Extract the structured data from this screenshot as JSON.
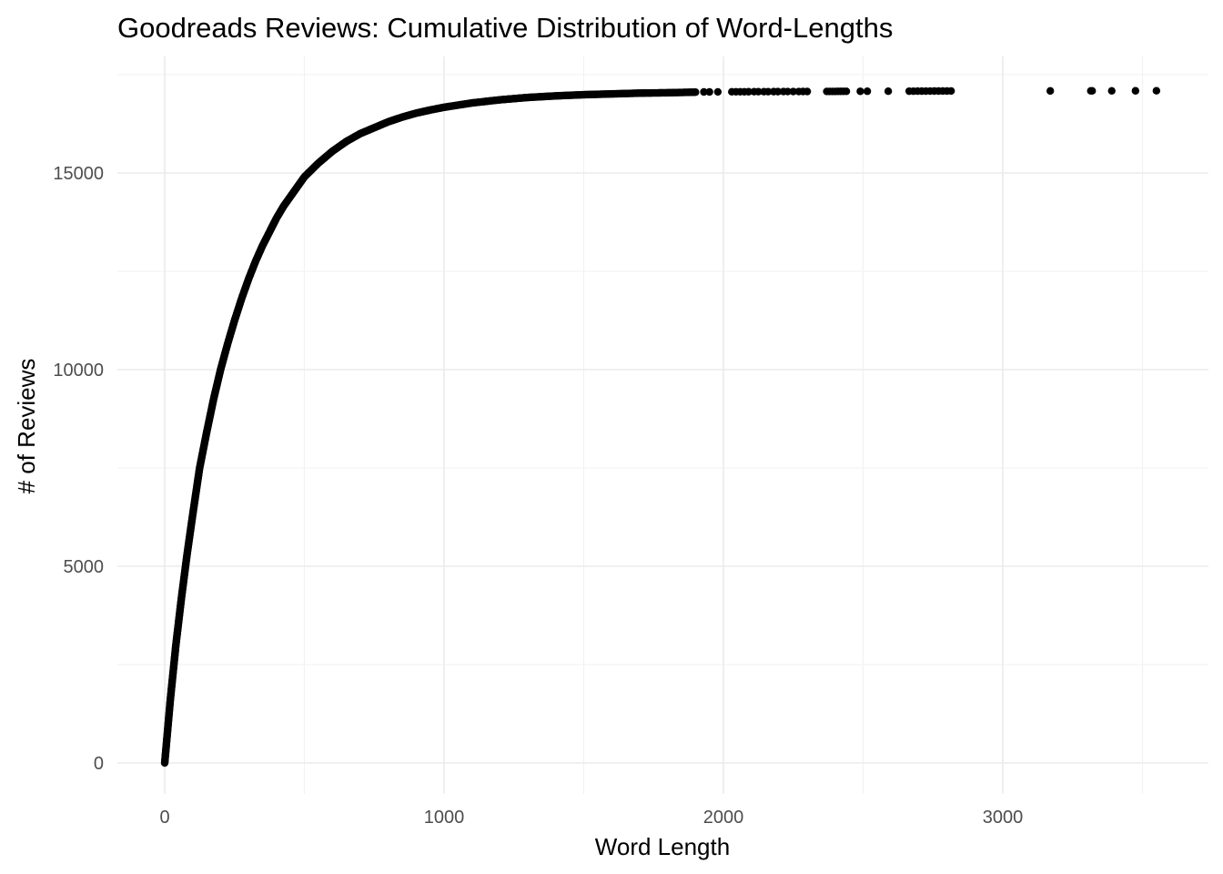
{
  "chart_data": {
    "type": "scatter",
    "title": "Goodreads Reviews: Cumulative Distribution of Word-Lengths",
    "xlabel": "Word Length",
    "ylabel": "# of Reviews",
    "xlim": [
      -170,
      3700
    ],
    "ylim": [
      -850,
      17650
    ],
    "x_ticks": [
      0,
      1000,
      2000,
      3000
    ],
    "y_ticks": [
      0,
      5000,
      10000,
      15000
    ],
    "x_tick_labels": [
      "0",
      "1000",
      "2000",
      "3000"
    ],
    "y_tick_labels": [
      "0",
      "5000",
      "10000",
      "15000"
    ],
    "grid": true,
    "point_color": "#000000",
    "curve": [
      [
        0,
        0
      ],
      [
        20,
        1600
      ],
      [
        40,
        3000
      ],
      [
        60,
        4200
      ],
      [
        80,
        5300
      ],
      [
        100,
        6300
      ],
      [
        125,
        7500
      ],
      [
        150,
        8400
      ],
      [
        175,
        9250
      ],
      [
        200,
        10000
      ],
      [
        225,
        10650
      ],
      [
        250,
        11250
      ],
      [
        275,
        11800
      ],
      [
        300,
        12300
      ],
      [
        325,
        12750
      ],
      [
        350,
        13150
      ],
      [
        375,
        13500
      ],
      [
        400,
        13850
      ],
      [
        425,
        14150
      ],
      [
        450,
        14400
      ],
      [
        475,
        14650
      ],
      [
        500,
        14900
      ],
      [
        550,
        15250
      ],
      [
        600,
        15550
      ],
      [
        650,
        15800
      ],
      [
        700,
        16000
      ],
      [
        750,
        16150
      ],
      [
        800,
        16300
      ],
      [
        850,
        16420
      ],
      [
        900,
        16520
      ],
      [
        950,
        16600
      ],
      [
        1000,
        16670
      ],
      [
        1100,
        16780
      ],
      [
        1200,
        16860
      ],
      [
        1300,
        16920
      ],
      [
        1400,
        16960
      ],
      [
        1500,
        16990
      ],
      [
        1600,
        17010
      ],
      [
        1700,
        17030
      ],
      [
        1800,
        17040
      ],
      [
        1900,
        17055
      ]
    ],
    "tail_points": [
      [
        1930,
        17060
      ],
      [
        1950,
        17060
      ],
      [
        1980,
        17062
      ],
      [
        2030,
        17064
      ],
      [
        2045,
        17064
      ],
      [
        2060,
        17065
      ],
      [
        2075,
        17065
      ],
      [
        2090,
        17066
      ],
      [
        2110,
        17067
      ],
      [
        2125,
        17067
      ],
      [
        2145,
        17068
      ],
      [
        2160,
        17068
      ],
      [
        2180,
        17069
      ],
      [
        2195,
        17069
      ],
      [
        2215,
        17070
      ],
      [
        2230,
        17070
      ],
      [
        2250,
        17071
      ],
      [
        2270,
        17071
      ],
      [
        2285,
        17072
      ],
      [
        2300,
        17072
      ],
      [
        2370,
        17073
      ],
      [
        2380,
        17073
      ],
      [
        2390,
        17074
      ],
      [
        2400,
        17074
      ],
      [
        2410,
        17075
      ],
      [
        2420,
        17075
      ],
      [
        2430,
        17076
      ],
      [
        2440,
        17076
      ],
      [
        2490,
        17077
      ],
      [
        2515,
        17078
      ],
      [
        2590,
        17079
      ],
      [
        2665,
        17080
      ],
      [
        2680,
        17080
      ],
      [
        2695,
        17081
      ],
      [
        2710,
        17081
      ],
      [
        2725,
        17082
      ],
      [
        2740,
        17082
      ],
      [
        2755,
        17083
      ],
      [
        2770,
        17083
      ],
      [
        2785,
        17084
      ],
      [
        2800,
        17084
      ],
      [
        2815,
        17085
      ],
      [
        3170,
        17086
      ],
      [
        3315,
        17087
      ],
      [
        3320,
        17087
      ],
      [
        3390,
        17088
      ],
      [
        3475,
        17089
      ],
      [
        3550,
        17090
      ]
    ]
  }
}
